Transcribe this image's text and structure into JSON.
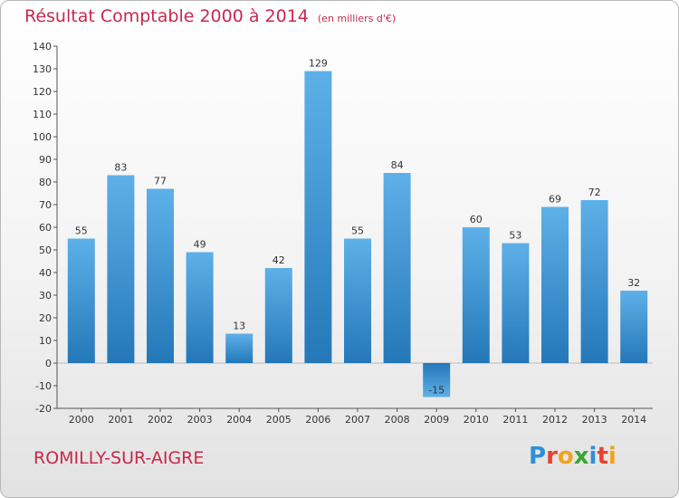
{
  "title": "Résultat Comptable 2000 à 2014",
  "subtitle": "(en milliers d'€)",
  "commune": "ROMILLY-SUR-AIGRE",
  "logo": {
    "letters": [
      "P",
      "r",
      "o",
      "x",
      "i",
      "t",
      "i"
    ],
    "colors": [
      "#2e8fd6",
      "#e8422f",
      "#f2a31c",
      "#3aa635",
      "#2e8fd6",
      "#e8422f",
      "#f2a31c"
    ]
  },
  "colors": {
    "title": "#c8284d",
    "bar_light": "#5eb0e8",
    "bar_dark": "#2478b8"
  },
  "chart_data": {
    "type": "bar",
    "categories": [
      "2000",
      "2001",
      "2002",
      "2003",
      "2004",
      "2005",
      "2006",
      "2007",
      "2008",
      "2009",
      "2010",
      "2011",
      "2012",
      "2013",
      "2014"
    ],
    "values": [
      55,
      83,
      77,
      49,
      13,
      42,
      129,
      55,
      84,
      -15,
      60,
      53,
      69,
      72,
      32
    ],
    "value_labels": [
      "55",
      "83",
      "77",
      "49",
      "13",
      "42",
      "129",
      "55",
      "84",
      "-15",
      "60",
      "53",
      "69",
      "72",
      "32"
    ],
    "yticks": [
      "-20",
      "-10",
      "0",
      "10",
      "20",
      "30",
      "40",
      "50",
      "60",
      "70",
      "80",
      "90",
      "100",
      "110",
      "120",
      "130",
      "140"
    ],
    "ylim": [
      -20,
      140
    ],
    "xlabel": "",
    "ylabel": "",
    "grid": false
  }
}
